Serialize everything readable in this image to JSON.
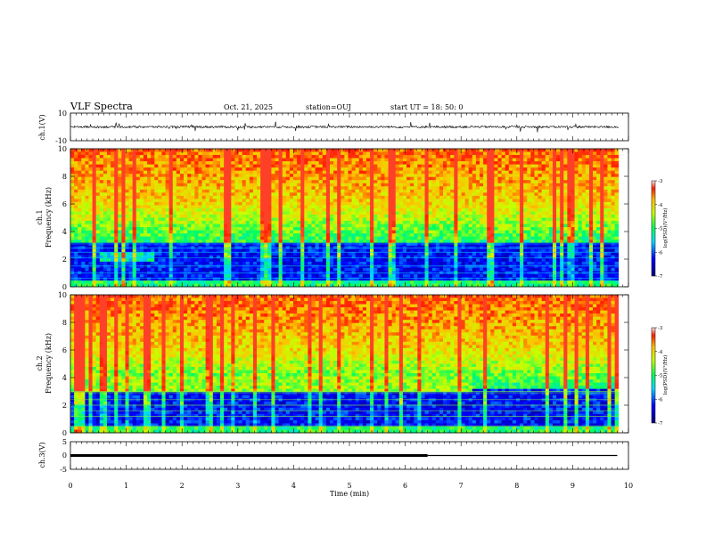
{
  "header": {
    "title": "VLF Spectra",
    "date": "Oct. 21, 2025",
    "station": "station=OUJ",
    "start": "start  UT  =   18: 50: 0"
  },
  "chart_data": [
    {
      "type": "line",
      "name": "ch1-waveform",
      "ylabel": "ch.1(V)",
      "ylim": [
        -10,
        10
      ],
      "yticks": [
        "10",
        "-10"
      ],
      "xlim": [
        0,
        10
      ],
      "baseline": 0,
      "note": "noisy waveform around 0 V with spikes to about +/-4 V"
    },
    {
      "type": "heatmap",
      "name": "ch1-spectrogram",
      "ylabel": "Frequency  (kHz)",
      "channel_label": "ch.1",
      "ylim": [
        0,
        10
      ],
      "yticks": [
        "0",
        "2",
        "4",
        "6",
        "8",
        "10"
      ],
      "xlim": [
        0,
        10
      ],
      "colorbar": {
        "label": "log(PSD)(V²/Hz)",
        "range": [
          -7,
          -3
        ],
        "ticks": [
          "-3",
          "-4",
          "-5",
          "-6",
          "-7"
        ]
      }
    },
    {
      "type": "heatmap",
      "name": "ch2-spectrogram",
      "ylabel": "Frequency  (kHz)",
      "channel_label": "ch.2",
      "ylim": [
        0,
        10
      ],
      "yticks": [
        "0",
        "2",
        "4",
        "6",
        "8",
        "10"
      ],
      "xlim": [
        0,
        10
      ],
      "colorbar": {
        "label": "log(PSD)(V²/Hz)",
        "range": [
          -7,
          -3
        ],
        "ticks": [
          "-3",
          "-4",
          "-5",
          "-6",
          "-7"
        ]
      }
    },
    {
      "type": "line",
      "name": "ch3-trace",
      "ylabel": "ch.3(V)",
      "ylim": [
        -5,
        5
      ],
      "yticks": [
        "5",
        "0",
        "-5"
      ],
      "xlim": [
        0,
        10
      ],
      "segments": [
        {
          "x": [
            0,
            6.4
          ],
          "y": [
            0,
            0
          ],
          "style": "thick"
        },
        {
          "x": [
            6.4,
            9.8
          ],
          "y": [
            0,
            0
          ],
          "style": "thin"
        }
      ]
    }
  ],
  "xaxis": {
    "label": "Time  (min)",
    "ticks": [
      "0",
      "1",
      "2",
      "3",
      "4",
      "5",
      "6",
      "7",
      "8",
      "9",
      "10"
    ]
  }
}
